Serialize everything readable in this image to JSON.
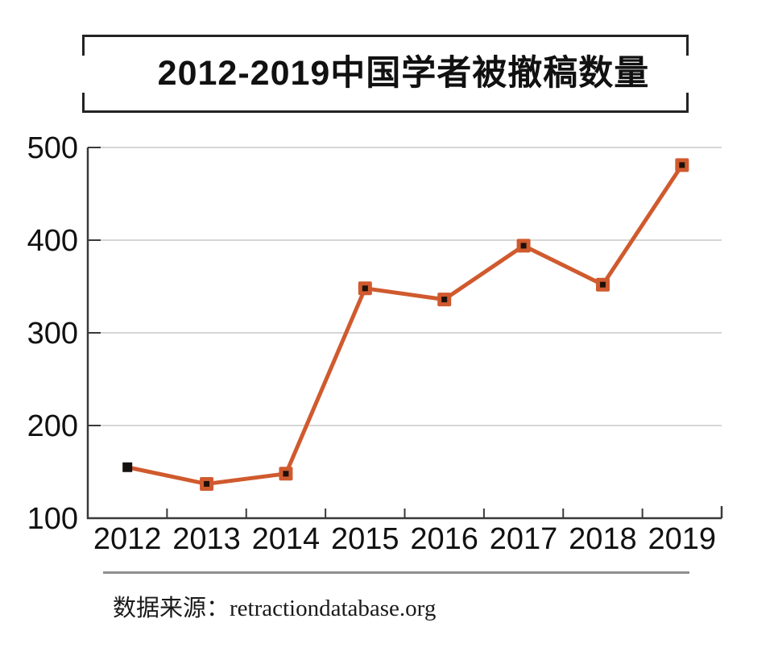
{
  "chart_data": {
    "type": "line",
    "title": "2012-2019中国学者被撤稿数量",
    "categories": [
      "2012",
      "2013",
      "2014",
      "2015",
      "2016",
      "2017",
      "2018",
      "2019"
    ],
    "values": [
      155,
      137,
      148,
      348,
      336,
      394,
      352,
      481
    ],
    "xlabel": "",
    "ylabel": "",
    "ylim": [
      100,
      500
    ],
    "yticks": [
      100,
      200,
      300,
      400,
      500
    ],
    "grid": "horizontal",
    "legend": "none",
    "marker": "square-with-dark-center",
    "first_point_marker": "black-square",
    "colors": {
      "line": "#d05a2e",
      "marker_fill": "#d05a2e",
      "marker_center": "#1d1008",
      "first_marker": "#151210",
      "gridline": "#c9c9c9",
      "axis": "#3a3a3a",
      "tick_label": "#111111",
      "title": "#111111",
      "divider": "#8e8e8e"
    }
  },
  "source": {
    "label": "数据来源：retractiondatabase.org"
  }
}
